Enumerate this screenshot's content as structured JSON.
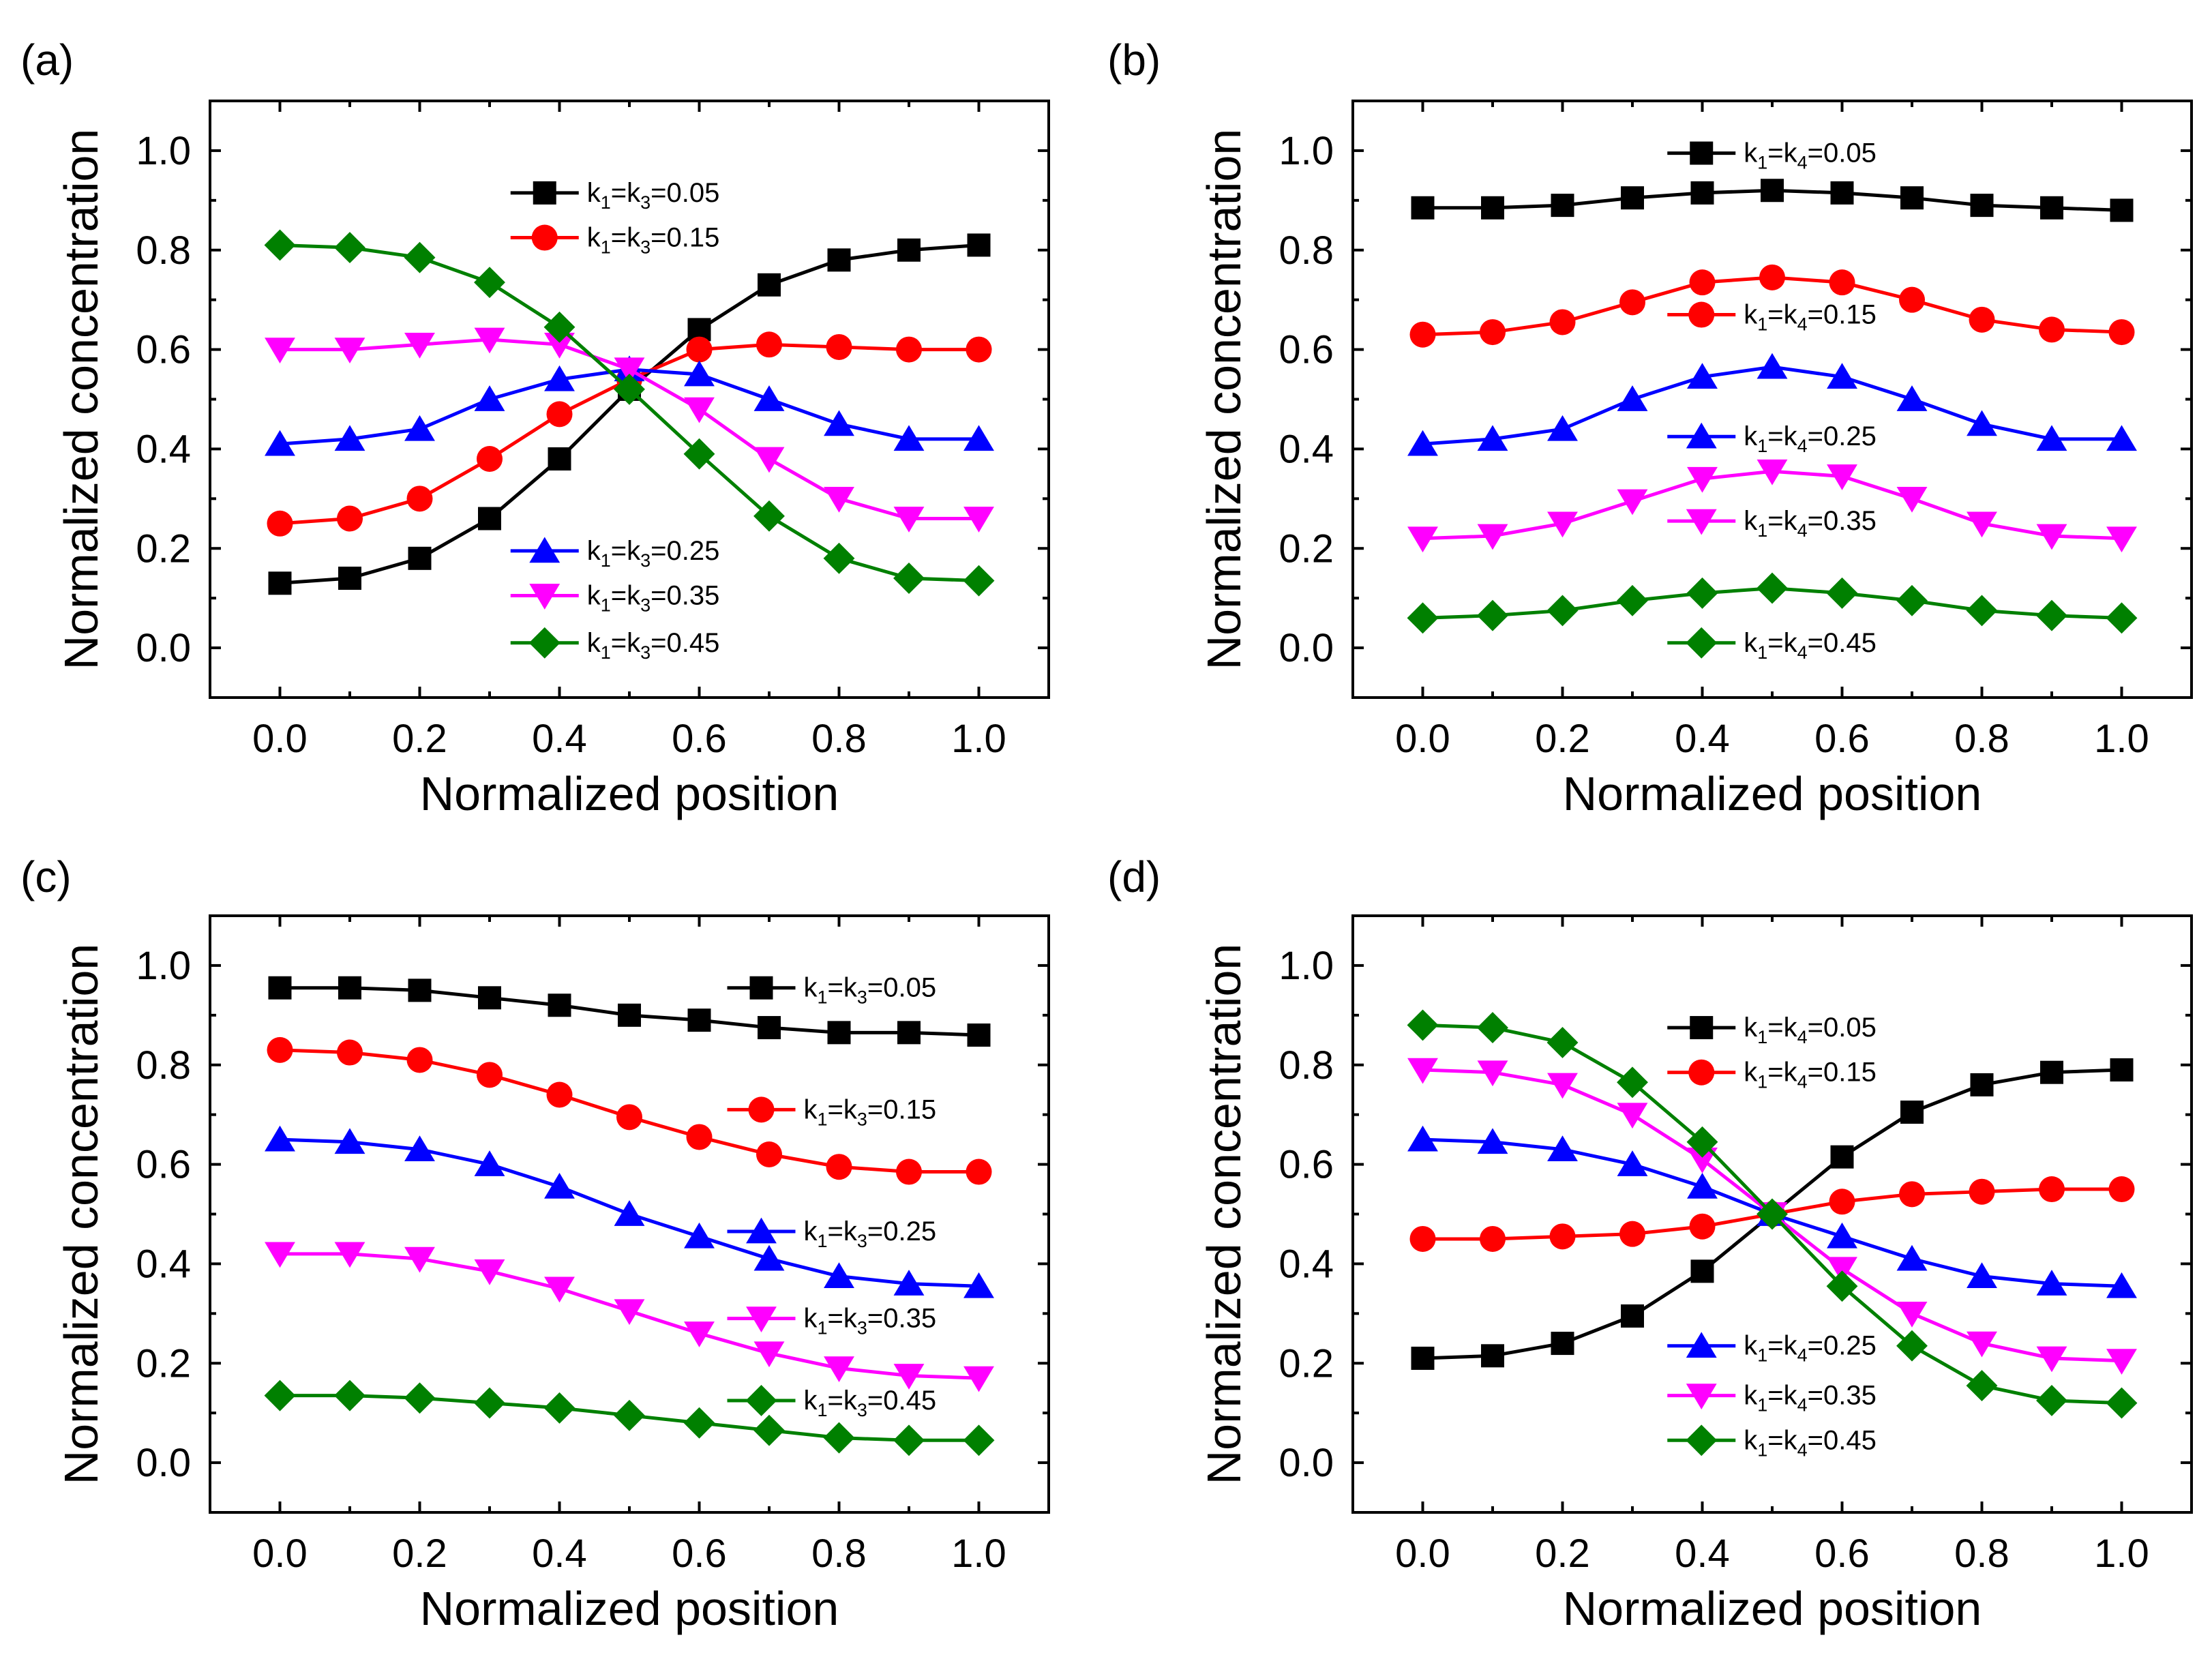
{
  "figure": {
    "ylabel": "Normalized concentration",
    "xlabel": "Normalized position"
  },
  "colors": {
    "black": "#000000",
    "red": "#ff0000",
    "blue": "#0000ff",
    "magenta": "#ff00ff",
    "green": "#008000"
  },
  "chart_data": [
    {
      "panel": "(a)",
      "type": "line",
      "xlabel": "Normalized position",
      "ylabel": "Normalized concentration",
      "xlim": [
        -0.1,
        1.1
      ],
      "ylim": [
        -0.1,
        1.1
      ],
      "xticks": [
        "0.0",
        "0.2",
        "0.4",
        "0.6",
        "0.8",
        "1.0"
      ],
      "yticks": [
        "0.0",
        "0.2",
        "0.4",
        "0.6",
        "0.8",
        "1.0"
      ],
      "x": [
        0.0,
        0.1,
        0.2,
        0.3,
        0.4,
        0.5,
        0.6,
        0.7,
        0.8,
        0.9,
        1.0
      ],
      "series": [
        {
          "name": "k1=k3=0.05",
          "k": "k1=k3",
          "kb": "3",
          "val": "0.05",
          "color": "black",
          "marker": "square",
          "values": [
            0.13,
            0.14,
            0.18,
            0.26,
            0.38,
            0.52,
            0.64,
            0.73,
            0.78,
            0.8,
            0.81
          ]
        },
        {
          "name": "k1=k3=0.15",
          "k": "k1=k3",
          "kb": "3",
          "val": "0.15",
          "color": "red",
          "marker": "circle",
          "values": [
            0.25,
            0.26,
            0.3,
            0.38,
            0.47,
            0.54,
            0.6,
            0.61,
            0.605,
            0.6,
            0.6
          ]
        },
        {
          "name": "k1=k3=0.25",
          "k": "k1=k3",
          "kb": "3",
          "val": "0.25",
          "color": "blue",
          "marker": "triangle-up",
          "values": [
            0.41,
            0.42,
            0.44,
            0.5,
            0.54,
            0.56,
            0.55,
            0.5,
            0.45,
            0.42,
            0.42
          ]
        },
        {
          "name": "k1=k3=0.35",
          "k": "k1=k3",
          "kb": "3",
          "val": "0.35",
          "color": "magenta",
          "marker": "triangle-down",
          "values": [
            0.6,
            0.6,
            0.61,
            0.62,
            0.61,
            0.56,
            0.48,
            0.38,
            0.3,
            0.26,
            0.26
          ]
        },
        {
          "name": "k1=k3=0.45",
          "k": "k1=k3",
          "kb": "3",
          "val": "0.45",
          "color": "green",
          "marker": "diamond",
          "values": [
            0.81,
            0.805,
            0.785,
            0.735,
            0.645,
            0.52,
            0.39,
            0.265,
            0.18,
            0.14,
            0.135
          ]
        }
      ]
    },
    {
      "panel": "(b)",
      "type": "line",
      "xlabel": "Normalized position",
      "ylabel": "Normalized concentration",
      "xlim": [
        -0.1,
        1.1
      ],
      "ylim": [
        -0.1,
        1.1
      ],
      "xticks": [
        "0.0",
        "0.2",
        "0.4",
        "0.6",
        "0.8",
        "1.0"
      ],
      "yticks": [
        "0.0",
        "0.2",
        "0.4",
        "0.6",
        "0.8",
        "1.0"
      ],
      "x": [
        0.0,
        0.1,
        0.2,
        0.3,
        0.4,
        0.5,
        0.6,
        0.7,
        0.8,
        0.9,
        1.0
      ],
      "series": [
        {
          "name": "k1=k4=0.05",
          "k": "k1=k4",
          "kb": "4",
          "val": "0.05",
          "color": "black",
          "marker": "square",
          "values": [
            0.885,
            0.885,
            0.89,
            0.905,
            0.915,
            0.92,
            0.915,
            0.905,
            0.89,
            0.885,
            0.88
          ]
        },
        {
          "name": "k1=k4=0.15",
          "k": "k1=k4",
          "kb": "4",
          "val": "0.15",
          "color": "red",
          "marker": "circle",
          "values": [
            0.63,
            0.635,
            0.655,
            0.695,
            0.735,
            0.745,
            0.735,
            0.7,
            0.66,
            0.64,
            0.635
          ]
        },
        {
          "name": "k1=k4=0.25",
          "k": "k1=k4",
          "kb": "4",
          "val": "0.25",
          "color": "blue",
          "marker": "triangle-up",
          "values": [
            0.41,
            0.42,
            0.44,
            0.5,
            0.545,
            0.565,
            0.545,
            0.5,
            0.45,
            0.42,
            0.42
          ]
        },
        {
          "name": "k1=k4=0.35",
          "k": "k1=k4",
          "kb": "4",
          "val": "0.35",
          "color": "magenta",
          "marker": "triangle-down",
          "values": [
            0.22,
            0.225,
            0.25,
            0.295,
            0.34,
            0.355,
            0.345,
            0.3,
            0.25,
            0.225,
            0.22
          ]
        },
        {
          "name": "k1=k4=0.45",
          "k": "k1=k4",
          "kb": "4",
          "val": "0.45",
          "color": "green",
          "marker": "diamond",
          "values": [
            0.06,
            0.065,
            0.075,
            0.095,
            0.11,
            0.12,
            0.11,
            0.095,
            0.075,
            0.065,
            0.06
          ]
        }
      ]
    },
    {
      "panel": "(c)",
      "type": "line",
      "xlabel": "Normalized position",
      "ylabel": "Normalized concentration",
      "xlim": [
        -0.1,
        1.1
      ],
      "ylim": [
        -0.1,
        1.1
      ],
      "xticks": [
        "0.0",
        "0.2",
        "0.4",
        "0.6",
        "0.8",
        "1.0"
      ],
      "yticks": [
        "0.0",
        "0.2",
        "0.4",
        "0.6",
        "0.8",
        "1.0"
      ],
      "x": [
        0.0,
        0.1,
        0.2,
        0.3,
        0.4,
        0.5,
        0.6,
        0.7,
        0.8,
        0.9,
        1.0
      ],
      "series": [
        {
          "name": "k1=k3=0.05",
          "k": "k1=k3",
          "kb": "3",
          "val": "0.05",
          "color": "black",
          "marker": "square",
          "values": [
            0.955,
            0.955,
            0.95,
            0.935,
            0.92,
            0.9,
            0.89,
            0.875,
            0.865,
            0.865,
            0.86
          ]
        },
        {
          "name": "k1=k3=0.15",
          "k": "k1=k3",
          "kb": "3",
          "val": "0.15",
          "color": "red",
          "marker": "circle",
          "values": [
            0.83,
            0.825,
            0.81,
            0.78,
            0.74,
            0.695,
            0.655,
            0.62,
            0.595,
            0.585,
            0.585
          ]
        },
        {
          "name": "k1=k3=0.25",
          "k": "k1=k3",
          "kb": "3",
          "val": "0.25",
          "color": "blue",
          "marker": "triangle-up",
          "values": [
            0.65,
            0.645,
            0.63,
            0.6,
            0.555,
            0.5,
            0.455,
            0.41,
            0.375,
            0.36,
            0.355
          ]
        },
        {
          "name": "k1=k3=0.35",
          "k": "k1=k3",
          "kb": "3",
          "val": "0.35",
          "color": "magenta",
          "marker": "triangle-down",
          "values": [
            0.42,
            0.42,
            0.41,
            0.385,
            0.35,
            0.305,
            0.26,
            0.22,
            0.19,
            0.175,
            0.17
          ]
        },
        {
          "name": "k1=k3=0.45",
          "k": "k1=k3",
          "kb": "3",
          "val": "0.45",
          "color": "green",
          "marker": "diamond",
          "values": [
            0.135,
            0.135,
            0.13,
            0.12,
            0.11,
            0.095,
            0.08,
            0.065,
            0.05,
            0.045,
            0.045
          ]
        }
      ]
    },
    {
      "panel": "(d)",
      "type": "line",
      "xlabel": "Normalized position",
      "ylabel": "Normalized concentration",
      "xlim": [
        -0.1,
        1.1
      ],
      "ylim": [
        -0.1,
        1.1
      ],
      "xticks": [
        "0.0",
        "0.2",
        "0.4",
        "0.6",
        "0.8",
        "1.0"
      ],
      "yticks": [
        "0.0",
        "0.2",
        "0.4",
        "0.6",
        "0.8",
        "1.0"
      ],
      "x": [
        0.0,
        0.1,
        0.2,
        0.3,
        0.4,
        0.5,
        0.6,
        0.7,
        0.8,
        0.9,
        1.0
      ],
      "series": [
        {
          "name": "k1=k4=0.05",
          "k": "k1=k4",
          "kb": "4",
          "val": "0.05",
          "color": "black",
          "marker": "square",
          "values": [
            0.21,
            0.215,
            0.24,
            0.295,
            0.385,
            0.5,
            0.615,
            0.705,
            0.76,
            0.785,
            0.79
          ]
        },
        {
          "name": "k1=k4=0.15",
          "k": "k1=k4",
          "kb": "4",
          "val": "0.15",
          "color": "red",
          "marker": "circle",
          "values": [
            0.45,
            0.45,
            0.455,
            0.46,
            0.475,
            0.5,
            0.525,
            0.54,
            0.545,
            0.55,
            0.55
          ]
        },
        {
          "name": "k1=k4=0.25",
          "k": "k1=k4",
          "kb": "4",
          "val": "0.25",
          "color": "blue",
          "marker": "triangle-up",
          "values": [
            0.65,
            0.645,
            0.63,
            0.6,
            0.555,
            0.5,
            0.455,
            0.41,
            0.375,
            0.36,
            0.355
          ]
        },
        {
          "name": "k1=k4=0.35",
          "k": "k1=k4",
          "kb": "4",
          "val": "0.35",
          "color": "magenta",
          "marker": "triangle-down",
          "values": [
            0.79,
            0.785,
            0.76,
            0.7,
            0.61,
            0.5,
            0.39,
            0.3,
            0.24,
            0.21,
            0.205
          ]
        },
        {
          "name": "k1=k4=0.45",
          "k": "k1=k4",
          "kb": "4",
          "val": "0.45",
          "color": "green",
          "marker": "diamond",
          "values": [
            0.88,
            0.875,
            0.845,
            0.765,
            0.645,
            0.5,
            0.355,
            0.235,
            0.155,
            0.125,
            0.12
          ]
        }
      ]
    }
  ]
}
